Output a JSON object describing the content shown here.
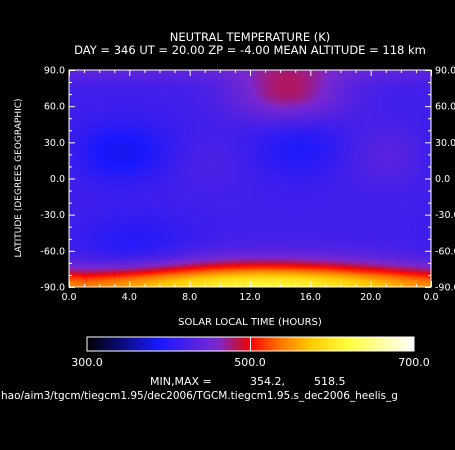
{
  "chart_data": {
    "type": "heatmap",
    "title": "NEUTRAL TEMPERATURE (K)",
    "subtitle": "DAY = 346   UT = 20.00   ZP =   -4.00   MEAN ALTITUDE = 118 km",
    "xlabel": "SOLAR LOCAL TIME (HOURS)",
    "ylabel": "LATITUDE (DEGREES GEOGRAPHIC)",
    "xlim": [
      0,
      24
    ],
    "ylim": [
      -90,
      90
    ],
    "x_ticks": [
      "0.0",
      "4.0",
      "8.0",
      "12.0",
      "16.0",
      "20.0",
      "0.0"
    ],
    "y_ticks": [
      "90.0",
      "60.0",
      "30.0",
      "0.0",
      "-30.0",
      "-60.0",
      "-90.0"
    ],
    "colorbar": {
      "min": 300,
      "max": 700,
      "tick_labels": [
        "300.0",
        "500.0",
        "700.0"
      ]
    },
    "minmax_label": "MIN,MAX =",
    "min_value": "354.2,",
    "max_value": "518.5",
    "features": [
      {
        "slt": 3.5,
        "lat": 22,
        "value": 380,
        "kind": "cold"
      },
      {
        "slt": 15.5,
        "lat": 25,
        "value": 390,
        "kind": "cold"
      },
      {
        "slt": 9.0,
        "lat": 15,
        "value": 430,
        "kind": "warm"
      },
      {
        "slt": 21.0,
        "lat": 20,
        "value": 440,
        "kind": "warm"
      },
      {
        "slt": 14.5,
        "lat": 72,
        "value": 480,
        "kind": "warm"
      },
      {
        "slt": 4.5,
        "lat": -55,
        "value": 395,
        "kind": "cold"
      },
      {
        "slt": 13.0,
        "lat": -85,
        "value": 515,
        "kind": "warm"
      }
    ]
  },
  "footer": {
    "path": "hao/aim3/tgcm/tiegcm1.95/dec2006/TGCM.tiegcm1.95.s_dec2006_heelis_g"
  }
}
